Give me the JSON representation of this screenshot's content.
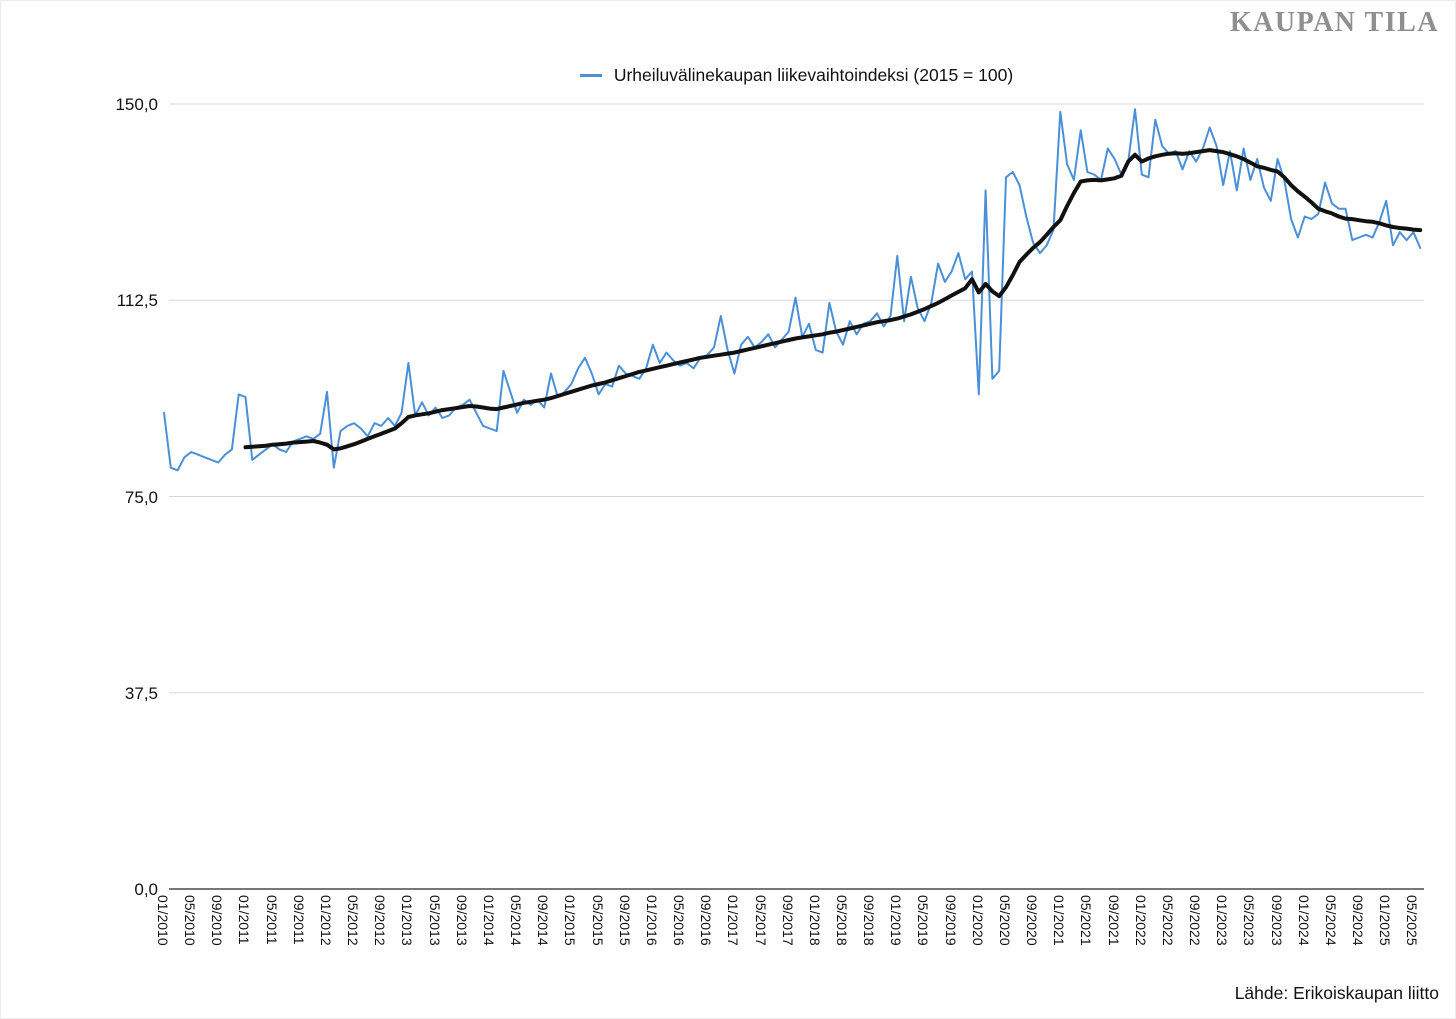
{
  "brand": {
    "logo_text": "KAUPAN TILA"
  },
  "legend": {
    "label": "Urheiluvälinekaupan liikevaihtoindeksi (2015 = 100)"
  },
  "source": {
    "text": "Lähde: Erikoiskaupan liitto"
  },
  "chart_data": {
    "type": "line",
    "title": "Urheiluvälinekaupan liikevaihtoindeksi (2015 = 100)",
    "grid": true,
    "legend_position": "top-center",
    "colors": {
      "index_line": "#4a90d8",
      "trend_line": "#111111",
      "gridline": "#d9d9d9",
      "axis_line": "#262626"
    },
    "y_axis": {
      "range": [
        0,
        150
      ],
      "tick_values": [
        150,
        112.5,
        75,
        37.5,
        0
      ],
      "tick_labels": [
        "150,0",
        "112,5",
        "75,0",
        "37,5",
        "0,0"
      ]
    },
    "x_axis": {
      "unit": "month",
      "tick_every_months": 4,
      "labels": [
        "01/2010",
        "05/2010",
        "09/2010",
        "01/2011",
        "05/2011",
        "09/2011",
        "01/2012",
        "05/2012",
        "09/2012",
        "01/2013",
        "05/2013",
        "09/2013",
        "01/2014",
        "05/2014",
        "09/2014",
        "01/2015",
        "05/2015",
        "09/2015",
        "01/2016",
        "05/2016",
        "09/2016",
        "01/2017",
        "05/2017",
        "09/2017",
        "01/2018",
        "05/2018",
        "09/2018",
        "01/2019",
        "05/2019",
        "09/2019",
        "01/2020",
        "05/2020",
        "09/2020",
        "01/2021",
        "05/2021",
        "09/2021",
        "01/2022",
        "05/2022",
        "09/2022",
        "01/2023",
        "05/2023",
        "09/2023",
        "01/2024",
        "05/2024",
        "09/2024",
        "01/2025",
        "05/2025"
      ]
    },
    "series": [
      {
        "name": "Urheiluvälinekaupan liikevaihtoindeksi (2015 = 100)",
        "color": "#4a90d8",
        "width": 2,
        "start_month": "01/2010",
        "start_month_index": 0,
        "values": [
          91,
          80.5,
          80,
          82.5,
          83.5,
          83,
          82.5,
          82,
          81.5,
          83,
          84,
          94.5,
          94,
          82,
          83,
          84,
          85,
          84,
          83.5,
          85.5,
          86,
          86.5,
          86,
          87,
          95,
          80.5,
          87.5,
          88.5,
          89,
          88,
          86.5,
          89,
          88.5,
          90,
          88.5,
          91,
          100.5,
          90.5,
          93,
          90.5,
          92,
          90,
          90.5,
          92,
          92.5,
          93.5,
          91,
          88.5,
          88,
          87.5,
          99,
          95,
          91,
          93.5,
          92.5,
          93.5,
          92,
          98.5,
          94,
          95,
          96.5,
          99.5,
          101.5,
          98.5,
          94.5,
          96.5,
          96,
          100,
          98.5,
          98,
          97.5,
          99.5,
          104,
          100.5,
          102.5,
          101,
          100,
          100.5,
          99.5,
          101.5,
          102,
          103.5,
          109.5,
          103,
          98.5,
          104,
          105.5,
          103.5,
          104.5,
          106,
          103.5,
          105,
          106.5,
          113,
          105.5,
          108,
          103,
          102.5,
          112,
          106.5,
          104,
          108.5,
          106,
          108,
          108.5,
          110,
          107.5,
          109.5,
          121,
          108.5,
          117,
          111,
          108.5,
          112,
          119.5,
          116,
          118,
          121.5,
          116.5,
          118,
          94.5,
          133.5,
          97.5,
          99,
          136,
          137,
          134.5,
          128.5,
          123.5,
          121.5,
          123,
          126,
          148.5,
          138.5,
          135.5,
          145,
          137,
          136.5,
          135.5,
          141.5,
          139.5,
          136.5,
          139,
          149,
          136.5,
          136,
          147,
          142,
          140.5,
          141,
          137.5,
          141,
          139,
          141.5,
          145.5,
          142,
          134.5,
          141,
          133.5,
          141.5,
          135.5,
          139.5,
          134,
          131.5,
          139.5,
          135.5,
          128,
          124.5,
          128.5,
          128,
          129,
          135,
          131,
          130,
          130,
          124,
          124.5,
          125,
          124.5,
          127.5,
          131.5,
          123,
          125.5,
          124,
          125.5,
          122.5
        ]
      },
      {
        "name": "trend",
        "color": "#111111",
        "width": 4,
        "start_month": "01/2011",
        "start_month_index": 12,
        "values": [
          84.4,
          84.5,
          84.6,
          84.7,
          84.9,
          85,
          85.1,
          85.3,
          85.4,
          85.5,
          85.6,
          85.3,
          84.9,
          84,
          84.2,
          84.6,
          85,
          85.5,
          86,
          86.5,
          87,
          87.5,
          88,
          89,
          90.2,
          90.5,
          90.7,
          90.9,
          91.2,
          91.5,
          91.7,
          91.9,
          92.1,
          92.3,
          92.2,
          92,
          91.8,
          91.7,
          92,
          92.3,
          92.6,
          92.9,
          93.1,
          93.3,
          93.5,
          93.8,
          94.2,
          94.6,
          95,
          95.4,
          95.8,
          96.2,
          96.5,
          96.8,
          97.2,
          97.6,
          98,
          98.4,
          98.8,
          99.1,
          99.4,
          99.7,
          100,
          100.3,
          100.6,
          100.9,
          101.2,
          101.5,
          101.7,
          101.9,
          102.1,
          102.3,
          102.5,
          102.8,
          103.1,
          103.4,
          103.7,
          104,
          104.3,
          104.6,
          104.9,
          105.2,
          105.4,
          105.6,
          105.8,
          106,
          106.3,
          106.5,
          106.8,
          107.1,
          107.4,
          107.7,
          108,
          108.3,
          108.5,
          108.7,
          109,
          109.4,
          109.8,
          110.3,
          110.8,
          111.4,
          112,
          112.7,
          113.4,
          114.1,
          114.8,
          116.5,
          114,
          115.6,
          114.2,
          113.3,
          115,
          117.3,
          119.8,
          121.2,
          122.5,
          123.6,
          125,
          126.5,
          127.8,
          130.5,
          133,
          135.2,
          135.4,
          135.5,
          135.4,
          135.6,
          135.8,
          136.3,
          139,
          140.3,
          139,
          139.6,
          140,
          140.3,
          140.5,
          140.6,
          140.5,
          140.6,
          140.8,
          141,
          141.2,
          141,
          140.8,
          140.4,
          140,
          139.5,
          138.8,
          138.1,
          137.8,
          137.4,
          137.1,
          136,
          134.5,
          133.3,
          132.3,
          131.2,
          130,
          129.5,
          129.1,
          128.5,
          128.1,
          128,
          127.8,
          127.6,
          127.5,
          127.2,
          126.8,
          126.5,
          126.3,
          126.2,
          126,
          125.9
        ]
      }
    ]
  }
}
